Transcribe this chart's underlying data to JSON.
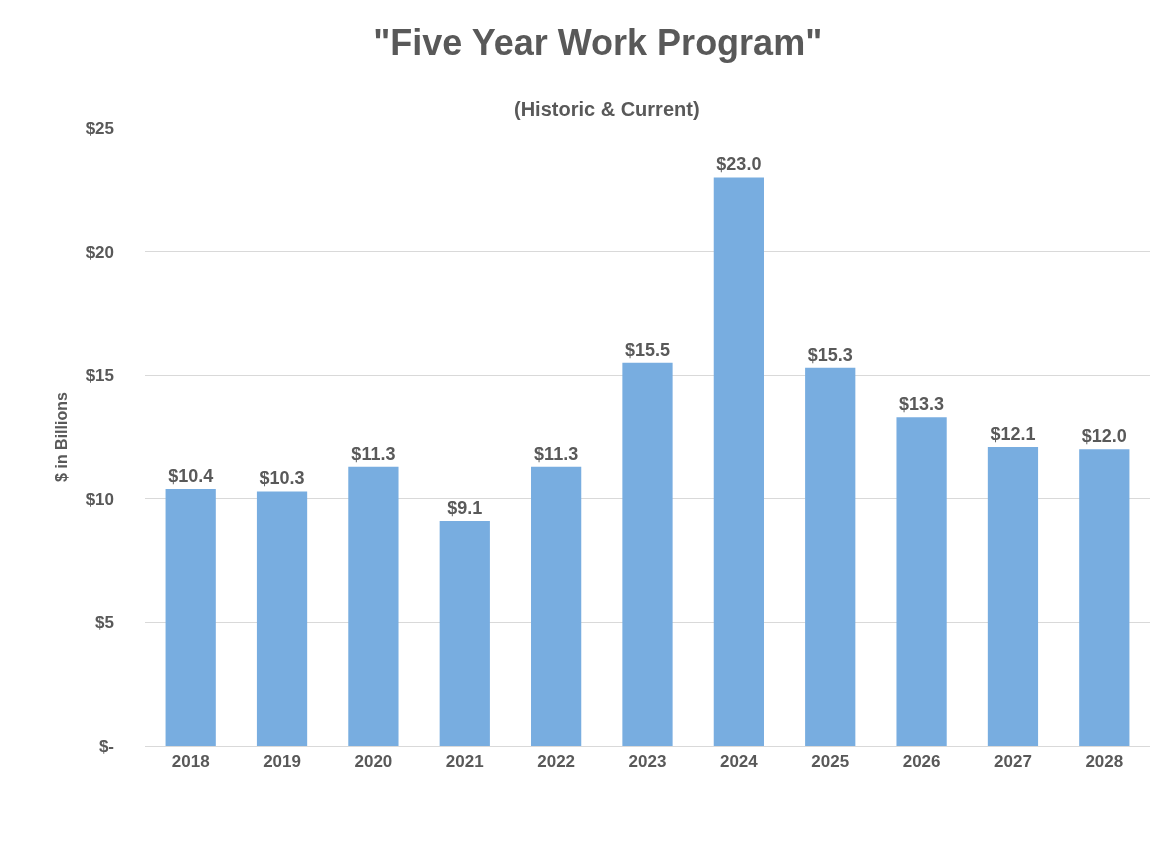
{
  "chart_data": {
    "type": "bar",
    "title": "\"Five Year Work Program\"",
    "subtitle": "(Historic & Current)",
    "ylabel": "$ in Billions",
    "categories": [
      "2018",
      "2019",
      "2020",
      "2021",
      "2022",
      "2023",
      "2024",
      "2025",
      "2026",
      "2027",
      "2028"
    ],
    "values": [
      10.4,
      10.3,
      11.3,
      9.1,
      11.3,
      15.5,
      23.0,
      15.3,
      13.3,
      12.1,
      12.0
    ],
    "value_labels": [
      "$10.4",
      "$10.3",
      "$11.3",
      "$9.1",
      "$11.3",
      "$15.5",
      "$23.0",
      "$15.3",
      "$13.3",
      "$12.1",
      "$12.0"
    ],
    "color": "#78ade0",
    "ylim": [
      0,
      25
    ],
    "yticks": [
      {
        "value": 0,
        "label": "$-"
      },
      {
        "value": 5,
        "label": "$5"
      },
      {
        "value": 10,
        "label": "$10"
      },
      {
        "value": 15,
        "label": "$15"
      },
      {
        "value": 20,
        "label": "$20"
      },
      {
        "value": 25,
        "label": "$25"
      }
    ],
    "grid": "y"
  }
}
